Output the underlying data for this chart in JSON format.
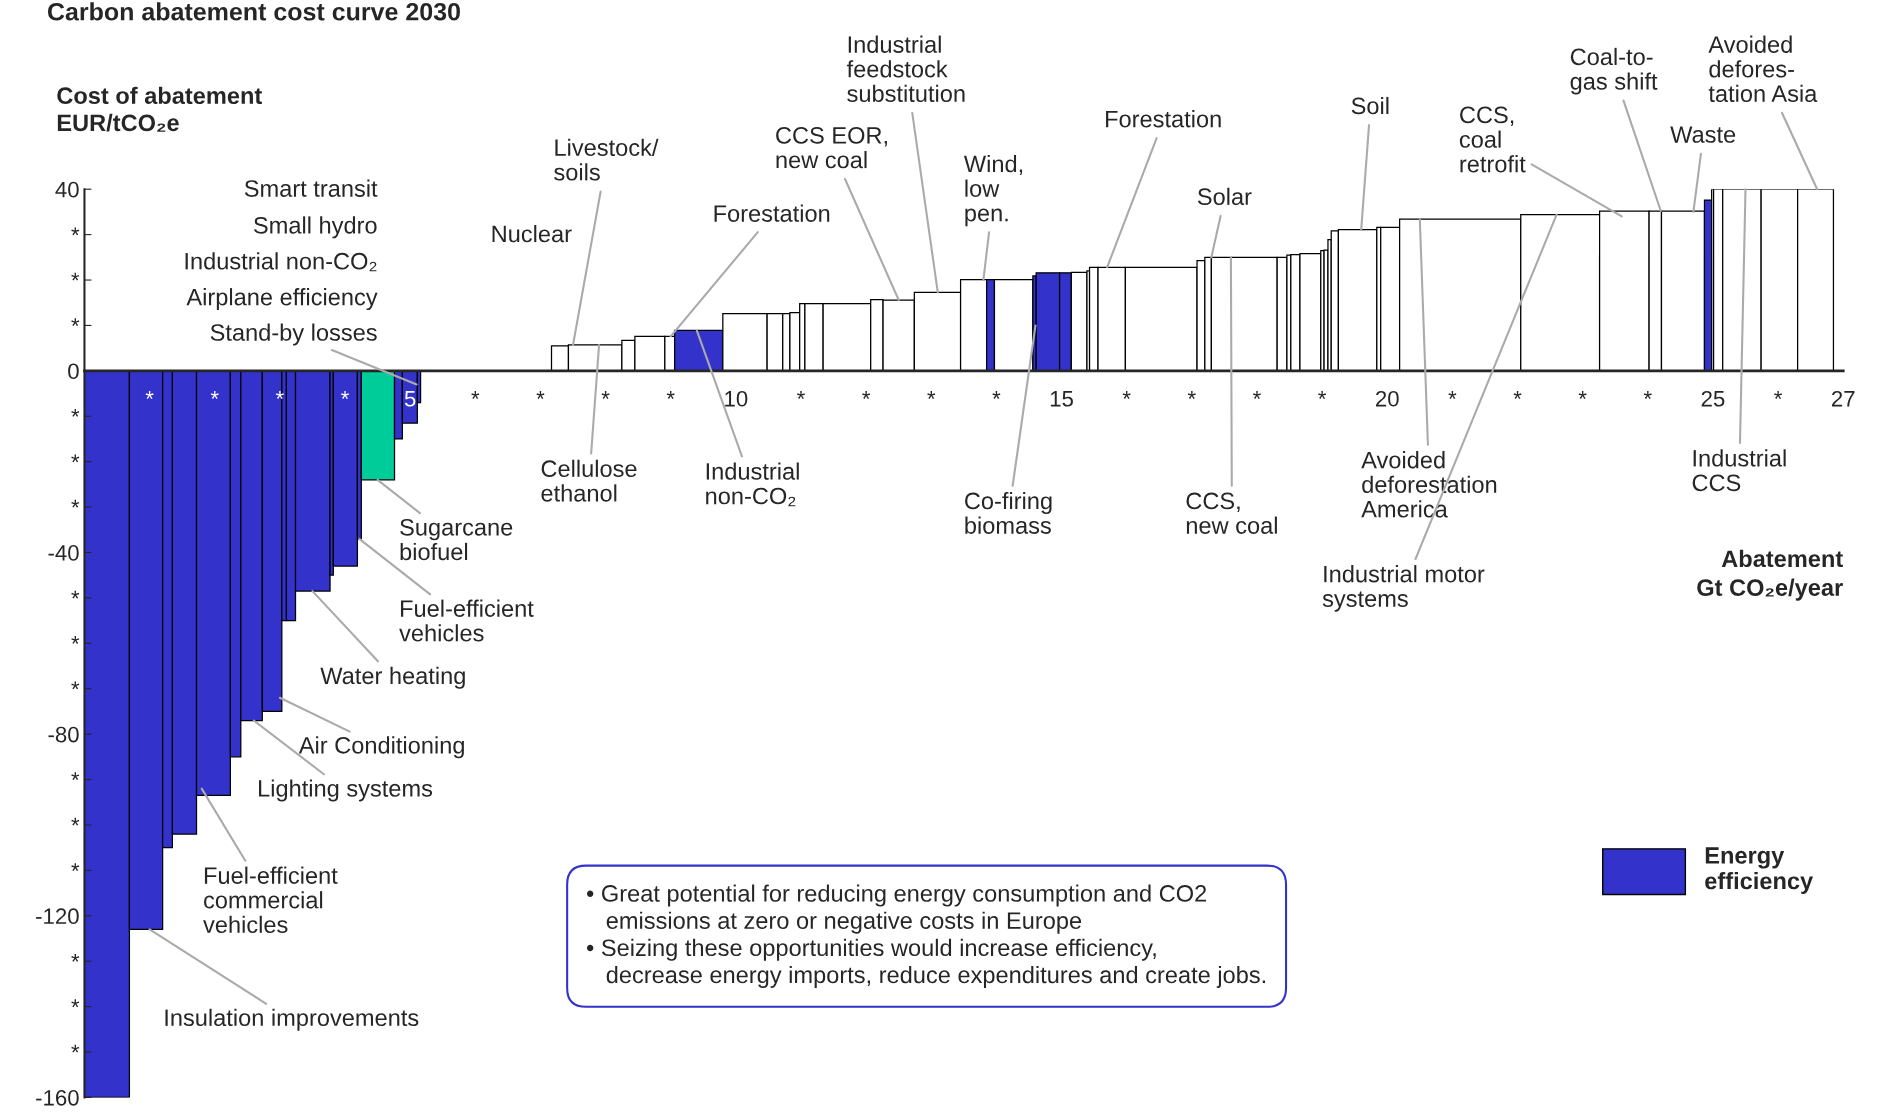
{
  "chart_data": {
    "type": "histogram",
    "title": "Carbon abatement cost curve 2030",
    "ylabel": "Cost of abatement\nEUR/tCO₂e",
    "xlabel": "Abatement\nGt CO₂e/year",
    "bins": [
      0,
      0.69,
      1.2,
      1.35,
      1.72,
      2.24,
      2.4,
      2.73,
      3.03,
      3.1,
      3.24,
      3.77,
      3.82,
      4.19,
      4.25,
      4.76,
      4.88,
      5.11,
      5.16,
      7.17,
      7.43,
      8.25,
      8.45,
      8.91,
      9.06,
      9.8,
      10.48,
      10.72,
      10.83,
      10.98,
      11.06,
      11.34,
      12.07,
      12.26,
      12.74,
      13.45,
      13.85,
      13.97,
      14.56,
      14.61,
      14.97,
      15.15,
      15.39,
      15.43,
      15.56,
      15.98,
      17.08,
      17.2,
      17.3,
      18.31,
      18.46,
      18.52,
      18.66,
      18.98,
      19.03,
      19.09,
      19.14,
      19.25,
      19.84,
      19.9,
      20.19,
      22.05,
      23.26,
      24.02,
      24.21,
      24.87,
      24.98,
      25.01,
      25.15,
      25.74,
      26.3,
      26.85
    ],
    "series": [
      {
        "name": "Energy efficiency",
        "color": "#3333cc",
        "values": [
          -160,
          -123,
          -105,
          -102,
          -93.5,
          -85,
          -77,
          -75,
          -55,
          -55,
          -48.5,
          -45,
          -43,
          -37,
          -24,
          -15,
          -11.5,
          -7,
          null,
          5.5,
          5.7,
          6.7,
          7.6,
          7.6,
          8.9,
          12.6,
          12.6,
          12.6,
          12.8,
          14.8,
          14.8,
          14.8,
          15.7,
          15.6,
          17.3,
          20.1,
          20.1,
          20.1,
          20.9,
          21.6,
          21.6,
          21.7,
          22,
          22.8,
          22.8,
          22.8,
          24.3,
          25,
          25,
          25,
          25.5,
          25.6,
          25.8,
          26.5,
          26.6,
          28.9,
          30.8,
          31.1,
          31.6,
          31.6,
          33.4,
          34.4,
          35.2,
          35.2,
          35.2,
          37.6,
          40,
          40,
          40,
          40,
          40
        ],
        "colors": [
          "#3333cc",
          "#3333cc",
          "#3333cc",
          "#3333cc",
          "#3333cc",
          "#3333cc",
          "#3333cc",
          "#3333cc",
          "#3333cc",
          "#3333cc",
          "#3333cc",
          "#3333cc",
          "#3333cc",
          "#3333cc",
          "#00cc99",
          "#3333cc",
          "#3333cc",
          "#3333cc",
          "#ffffff",
          "#ffffff",
          "#ffffff",
          "#ffffff",
          "#ffffff",
          "#ffffff",
          "#3333cc",
          "#ffffff",
          "#ffffff",
          "#ffffff",
          "#ffffff",
          "#ffffff",
          "#ffffff",
          "#ffffff",
          "#ffffff",
          "#ffffff",
          "#ffffff",
          "#ffffff",
          "#3333cc",
          "#ffffff",
          "#3333cc",
          "#3333cc",
          "#3333cc",
          "#ffffff",
          "#ffffff",
          "#ffffff",
          "#ffffff",
          "#ffffff",
          "#ffffff",
          "#ffffff",
          "#ffffff",
          "#ffffff",
          "#ffffff",
          "#ffffff",
          "#ffffff",
          "#ffffff",
          "#ffffff",
          "#ffffff",
          "#ffffff",
          "#ffffff",
          "#ffffff",
          "#ffffff",
          "#ffffff",
          "#ffffff",
          "#ffffff",
          "#ffffff",
          "#ffffff",
          "#3333cc",
          "#ffffff",
          "#ffffff",
          "#ffffff",
          "#ffffff",
          "#ffffff"
        ]
      }
    ],
    "xlim": [
      0,
      27
    ],
    "ylim": [
      -160,
      40
    ],
    "xticks": [
      {
        "value": 1,
        "label": "*"
      },
      {
        "value": 2,
        "label": "*"
      },
      {
        "value": 3,
        "label": "*"
      },
      {
        "value": 4,
        "label": "*"
      },
      5,
      {
        "value": 6,
        "label": "*"
      },
      {
        "value": 7,
        "label": "*"
      },
      {
        "value": 8,
        "label": "*"
      },
      {
        "value": 9,
        "label": "*"
      },
      10,
      {
        "value": 11,
        "label": "*"
      },
      {
        "value": 12,
        "label": "*"
      },
      {
        "value": 13,
        "label": "*"
      },
      {
        "value": 14,
        "label": "*"
      },
      15,
      {
        "value": 16,
        "label": "*"
      },
      {
        "value": 17,
        "label": "*"
      },
      {
        "value": 18,
        "label": "*"
      },
      {
        "value": 19,
        "label": "*"
      },
      20,
      {
        "value": 21,
        "label": "*"
      },
      {
        "value": 22,
        "label": "*"
      },
      {
        "value": 23,
        "label": "*"
      },
      {
        "value": 24,
        "label": "*"
      },
      25,
      {
        "value": 26,
        "label": "*"
      },
      27
    ],
    "yticks": [
      -160,
      {
        "value": -150,
        "label": "*"
      },
      {
        "value": -140,
        "label": "*"
      },
      {
        "value": -130,
        "label": "*"
      },
      -120,
      {
        "value": -110,
        "label": "*"
      },
      {
        "value": -100,
        "label": "*"
      },
      {
        "value": -90,
        "label": "*"
      },
      -80,
      {
        "value": -70,
        "label": "*"
      },
      {
        "value": -60,
        "label": "*"
      },
      {
        "value": -50,
        "label": "*"
      },
      -40,
      {
        "value": -30,
        "label": "*"
      },
      {
        "value": -20,
        "label": "*"
      },
      {
        "value": -10,
        "label": "*"
      },
      0,
      {
        "value": 10,
        "label": "*"
      },
      {
        "value": 20,
        "label": "*"
      },
      {
        "value": 30,
        "label": "*"
      },
      40
    ],
    "legend": "bottom right",
    "grid": false,
    "annotations": [
      "Smart transit",
      "Small hydro",
      "Industrial non-CO₂",
      "Airplane efficiency",
      {
        "text": "Stand-by losses",
        "x": 5.1,
        "y": -3
      },
      "Nuclear",
      {
        "text": "Livestock/\nsoils",
        "x": 7.5,
        "y": 5.7
      },
      {
        "text": "Cellulose\nethanol",
        "x": 7.9,
        "y": 5.7
      },
      {
        "text": "Forestation",
        "x": 9.0,
        "y": 7.6
      },
      {
        "text": "Industrial\nnon-CO₂",
        "x": 9.4,
        "y": 8.9
      },
      {
        "text": "CCS EOR,\nnew coal",
        "x": 12.5,
        "y": 15.6
      },
      {
        "text": "Industrial\nfeedstock\nsubstitution",
        "x": 13.1,
        "y": 17.3
      },
      {
        "text": "Wind,\nlow\npen.",
        "x": 13.8,
        "y": 20
      },
      {
        "text": "Forestation",
        "x": 15.7,
        "y": 22.8
      },
      {
        "text": "Co-firing\nbiomass",
        "x": 14.6,
        "y": 10
      },
      {
        "text": "Solar",
        "x": 17.3,
        "y": 25
      },
      {
        "text": "CCS,\nnew coal",
        "x": 17.6,
        "y": 25
      },
      {
        "text": "Soil",
        "x": 19.6,
        "y": 31
      },
      {
        "text": "Avoided\ndeforestation\nAmerica",
        "x": 20.5,
        "y": 33.4
      },
      {
        "text": "Industrial motor\nsystems",
        "x": 22.6,
        "y": 34.4
      },
      {
        "text": "CCS,\ncoal\nretrofit",
        "x": 23.6,
        "y": 34
      },
      {
        "text": "Coal-to-\ngas shift",
        "x": 24.2,
        "y": 35.2
      },
      {
        "text": "Waste",
        "x": 24.7,
        "y": 35
      },
      {
        "text": "Industrial\nCCS",
        "x": 25.5,
        "y": 40
      },
      {
        "text": "Avoided\ndefores-\ntation Asia",
        "x": 26.6,
        "y": 40
      },
      {
        "text": "Sugarcane\nbiofuel",
        "x": 4.5,
        "y": -24
      },
      {
        "text": "Fuel-efficient\nvehicles",
        "x": 4.22,
        "y": -37
      },
      {
        "text": "Water heating",
        "x": 3.5,
        "y": -48.5
      },
      {
        "text": "Air Conditioning",
        "x": 3.0,
        "y": -72
      },
      {
        "text": "Lighting systems",
        "x": 2.6,
        "y": -77
      },
      {
        "text": "Fuel-efficient\ncommercial\nvehicles",
        "x": 1.8,
        "y": -92
      },
      {
        "text": "Insulation improvements",
        "x": 1.0,
        "y": -123
      },
      "• Great potential for reducing energy consumption and CO2\n   emissions at zero or negative costs in Europe\n• Seizing these opportunities would increase efficiency,\n   decrease energy imports, reduce expenditures and create jobs."
    ]
  }
}
